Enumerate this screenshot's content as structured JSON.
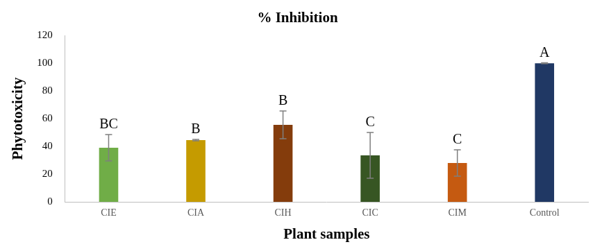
{
  "chart_data": {
    "type": "bar",
    "title": "% Inhibition",
    "x_label": "Plant samples",
    "y_label": "Phytotoxicity",
    "categories": [
      "CIE",
      "CIA",
      "CIH",
      "CIC",
      "CIM",
      "Control"
    ],
    "values": [
      39,
      44.5,
      55.5,
      33.5,
      28,
      100
    ],
    "errors": [
      9.5,
      0.5,
      10,
      16.5,
      9.5,
      0.3
    ],
    "annotations": [
      "BC",
      "B",
      "B",
      "C",
      "C",
      "A"
    ],
    "colors": [
      "#70ad47",
      "#c59b00",
      "#843c0c",
      "#375623",
      "#c55a11",
      "#203864"
    ],
    "ylim": [
      0,
      120
    ],
    "yticks": [
      0,
      20,
      40,
      60,
      80,
      100,
      120
    ],
    "grid": false
  }
}
